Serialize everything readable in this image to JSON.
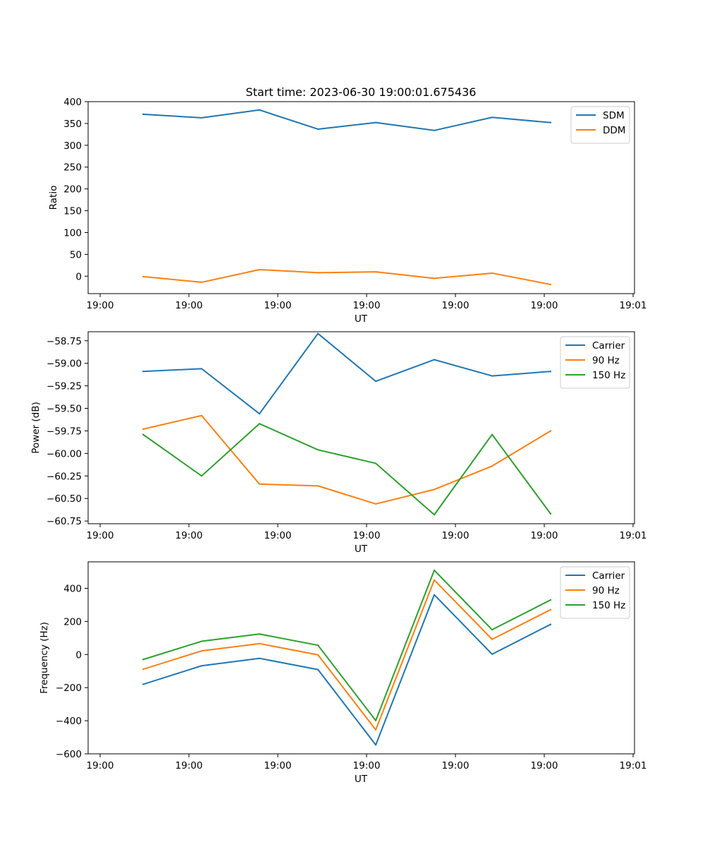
{
  "title": "Start time: 2023-06-30 19:00:01.675436",
  "chart_data": [
    {
      "type": "line",
      "xlabel": "UT",
      "ylabel": "Ratio",
      "x_tick_labels": [
        "19:00",
        "19:00",
        "19:00",
        "19:00",
        "19:00",
        "19:00",
        "19:00",
        "19:01"
      ],
      "y_ticks": [
        0,
        50,
        100,
        150,
        200,
        250,
        300,
        350,
        400
      ],
      "y_tick_labels": [
        "0",
        "50",
        "100",
        "150",
        "200",
        "250",
        "300",
        "350",
        "400"
      ],
      "ylim": [
        -40,
        400
      ],
      "legend_loc": "upper right",
      "series": [
        {
          "name": "SDM",
          "color": "#1f77b4",
          "values": [
            371,
            363,
            381,
            337,
            352,
            334,
            364,
            352
          ]
        },
        {
          "name": "DDM",
          "color": "#ff7f0e",
          "values": [
            -1,
            -14,
            15,
            8,
            10,
            -5,
            7,
            -19
          ]
        }
      ]
    },
    {
      "type": "line",
      "xlabel": "UT",
      "ylabel": "Power (dB)",
      "x_tick_labels": [
        "19:00",
        "19:00",
        "19:00",
        "19:00",
        "19:00",
        "19:00",
        "19:00",
        "19:01"
      ],
      "y_ticks": [
        -60.75,
        -60.5,
        -60.25,
        -60.0,
        -59.75,
        -59.5,
        -59.25,
        -59.0,
        -58.75
      ],
      "y_tick_labels": [
        "−60.75",
        "−60.50",
        "−60.25",
        "−60.00",
        "−59.75",
        "−59.50",
        "−59.25",
        "−59.00",
        "−58.75"
      ],
      "ylim": [
        -60.78,
        -58.65
      ],
      "legend_loc": "upper right",
      "series": [
        {
          "name": "Carrier",
          "color": "#1f77b4",
          "values": [
            -59.09,
            -59.06,
            -59.56,
            -58.67,
            -59.2,
            -58.96,
            -59.14,
            -59.09
          ]
        },
        {
          "name": "90 Hz",
          "color": "#ff7f0e",
          "values": [
            -59.73,
            -59.58,
            -60.34,
            -60.36,
            -60.56,
            -60.4,
            -60.14,
            -59.75
          ]
        },
        {
          "name": "150 Hz",
          "color": "#2ca02c",
          "values": [
            -59.79,
            -60.25,
            -59.67,
            -59.96,
            -60.11,
            -60.68,
            -59.79,
            -60.67
          ]
        }
      ]
    },
    {
      "type": "line",
      "xlabel": "UT",
      "ylabel": "Frequency (Hz)",
      "x_tick_labels": [
        "19:00",
        "19:00",
        "19:00",
        "19:00",
        "19:00",
        "19:00",
        "19:00",
        "19:01"
      ],
      "y_ticks": [
        -600,
        -400,
        -200,
        0,
        200,
        400
      ],
      "y_tick_labels": [
        "−600",
        "−400",
        "−200",
        "0",
        "200",
        "400"
      ],
      "ylim": [
        -600,
        560
      ],
      "legend_loc": "upper right",
      "series": [
        {
          "name": "Carrier",
          "color": "#1f77b4",
          "values": [
            -180,
            -68,
            -23,
            -91,
            -546,
            361,
            2,
            182
          ]
        },
        {
          "name": "90 Hz",
          "color": "#ff7f0e",
          "values": [
            -89,
            22,
            66,
            -2,
            -455,
            450,
            92,
            271
          ]
        },
        {
          "name": "150 Hz",
          "color": "#2ca02c",
          "values": [
            -30,
            80,
            124,
            56,
            -399,
            509,
            150,
            330
          ]
        }
      ]
    }
  ]
}
